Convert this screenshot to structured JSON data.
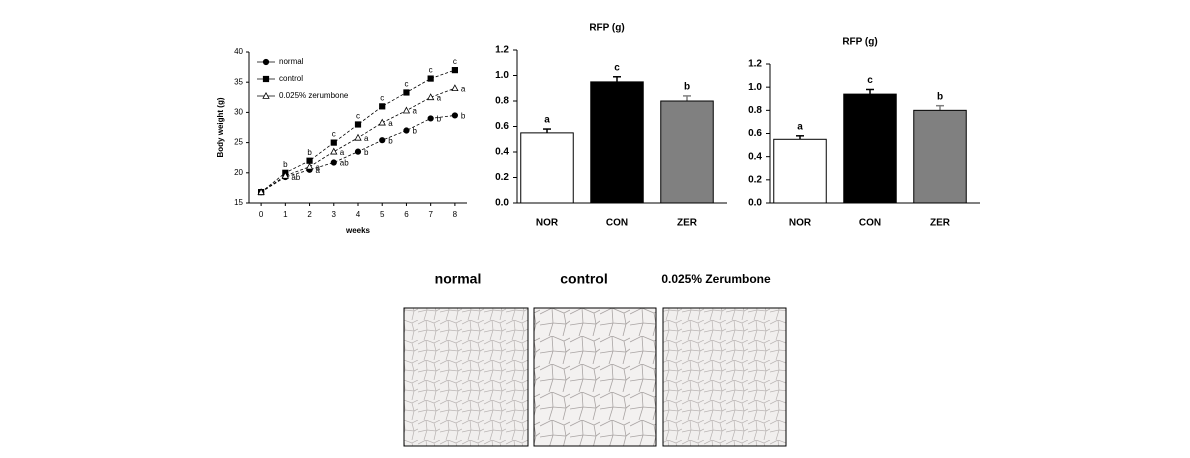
{
  "chart_data": [
    {
      "type": "line",
      "xlabel": "weeks",
      "ylabel": "Body weight (g)",
      "x": [
        0,
        1,
        2,
        3,
        4,
        5,
        6,
        7,
        8
      ],
      "xlim": [
        -0.5,
        8.5
      ],
      "xticks": [
        0,
        1,
        2,
        3,
        4,
        5,
        6,
        7,
        8
      ],
      "ylim": [
        15,
        40
      ],
      "yticks": [
        15,
        20,
        25,
        30,
        35,
        40
      ],
      "legend": "upper left",
      "series": [
        {
          "name": "normal",
          "color": "#000000",
          "marker": "circle",
          "filled": true,
          "values": [
            16.8,
            19.3,
            20.5,
            21.7,
            23.5,
            25.4,
            27,
            29,
            29.5
          ],
          "point_labels": [
            null,
            "ab",
            "a",
            "ab",
            "b",
            "b",
            "b",
            "b",
            "b"
          ]
        },
        {
          "name": "control",
          "color": "#000000",
          "marker": "square",
          "filled": true,
          "values": [
            16.8,
            20,
            22,
            25,
            28,
            31,
            33.3,
            35.6,
            37
          ],
          "point_labels": [
            null,
            "b",
            "b",
            "c",
            "c",
            "c",
            "c",
            "c",
            "c"
          ]
        },
        {
          "name": "0.025% zerumbone",
          "color": "#000000",
          "marker": "triangle",
          "filled": false,
          "values": [
            16.8,
            19.5,
            21,
            23.5,
            25.8,
            28.3,
            30.3,
            32.5,
            34
          ],
          "point_labels": [
            null,
            null,
            "a",
            "a",
            "a",
            "a",
            "a",
            "a",
            "a"
          ]
        }
      ]
    },
    {
      "type": "bar",
      "title": "RFP (g)",
      "categories": [
        "NOR",
        "CON",
        "ZER"
      ],
      "values": [
        0.55,
        0.95,
        0.8
      ],
      "errors": [
        0.03,
        0.04,
        0.04
      ],
      "annotations": [
        "a",
        "c",
        "b"
      ],
      "colors": [
        "#ffffff",
        "#000000",
        "#808080"
      ],
      "ylim": [
        0,
        1.2
      ],
      "yticks": [
        {
          "value": 0,
          "label": "0.0"
        },
        0.2,
        0.4,
        0.6,
        0.8,
        {
          "value": 1,
          "label": "1.0"
        },
        1.2
      ]
    },
    {
      "type": "bar",
      "title": "RFP (g)",
      "categories": [
        "NOR",
        "CON",
        "ZER"
      ],
      "values": [
        0.55,
        0.94,
        0.8
      ],
      "errors": [
        0.03,
        0.04,
        0.04
      ],
      "annotations": [
        "a",
        "c",
        "b"
      ],
      "colors": [
        "#ffffff",
        "#000000",
        "#808080"
      ],
      "ylim": [
        0,
        1.2
      ],
      "yticks": [
        {
          "value": 0,
          "label": "0.0"
        },
        0.2,
        0.4,
        0.6,
        0.8,
        {
          "value": 1,
          "label": "1.0"
        },
        1.2
      ]
    }
  ],
  "histology": {
    "labels": [
      "normal",
      "control",
      "0.025% Zerumbone"
    ]
  }
}
